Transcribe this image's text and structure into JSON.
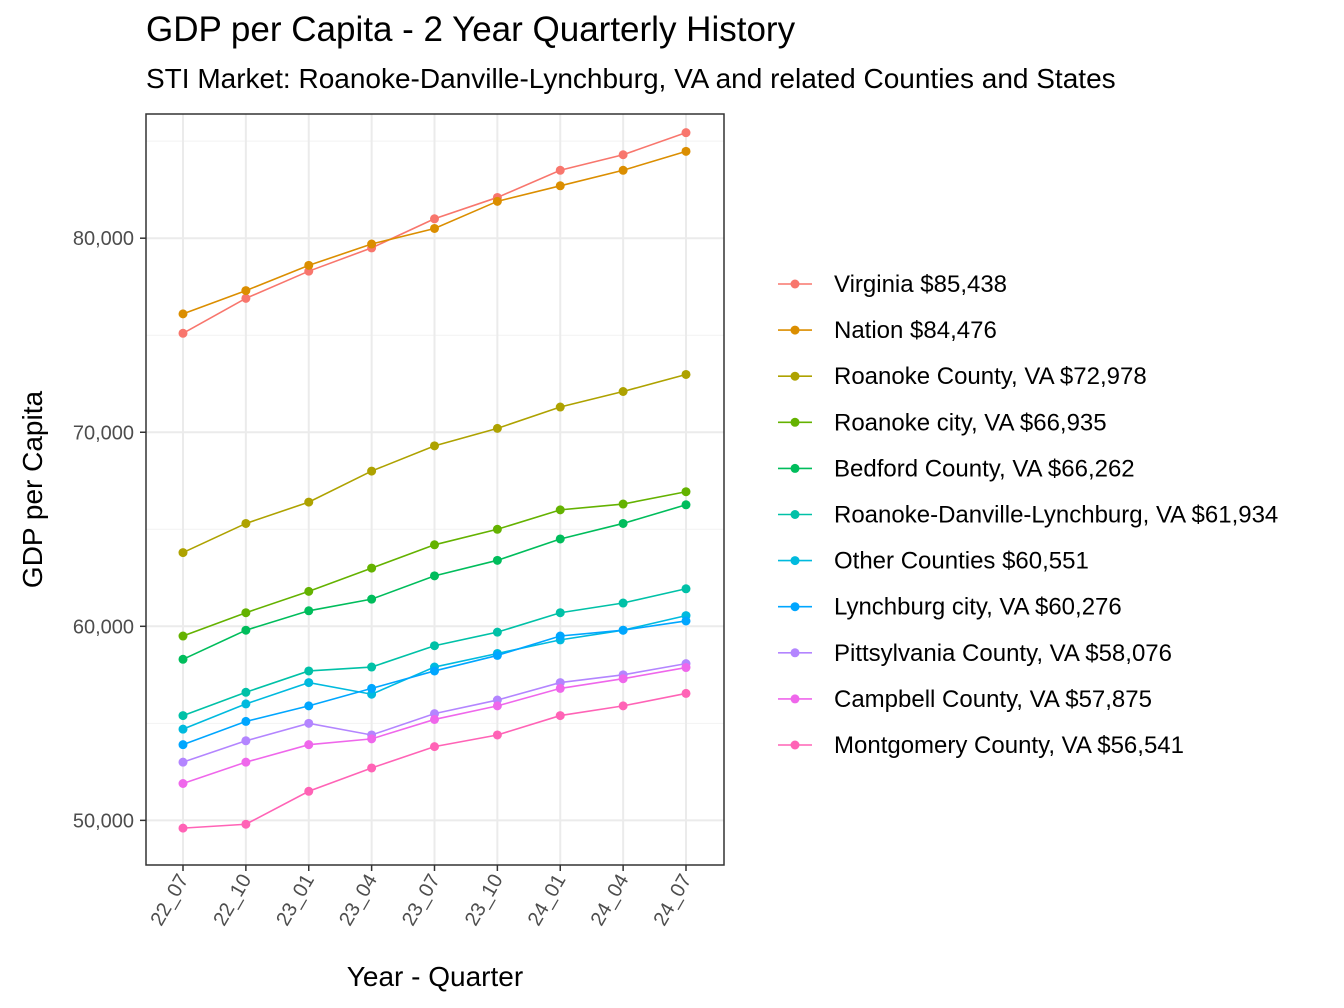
{
  "chart_data": {
    "type": "line",
    "title": "GDP per Capita - 2 Year Quarterly History",
    "subtitle": "STI Market: Roanoke-Danville-Lynchburg, VA and related Counties and States",
    "xlabel": "Year - Quarter",
    "ylabel": "GDP per Capita",
    "categories": [
      "22_07",
      "22_10",
      "23_01",
      "23_04",
      "23_07",
      "23_10",
      "24_01",
      "24_04",
      "24_07"
    ],
    "ylim": [
      47700,
      86400
    ],
    "yticks": [
      50000,
      60000,
      70000,
      80000
    ],
    "ytick_labels": [
      "50,000",
      "60,000",
      "70,000",
      "80,000"
    ],
    "grid": true,
    "legend_position": "right",
    "series": [
      {
        "name": "Virginia $85,438",
        "color": "#F8766D",
        "values": [
          75100,
          76900,
          78300,
          79500,
          81000,
          82100,
          83500,
          84300,
          85438
        ]
      },
      {
        "name": "Nation $84,476",
        "color": "#DB8E00",
        "values": [
          76100,
          77300,
          78600,
          79700,
          80500,
          81900,
          82700,
          83500,
          84476
        ]
      },
      {
        "name": "Roanoke County, VA $72,978",
        "color": "#AEA200",
        "values": [
          63800,
          65300,
          66400,
          68000,
          69300,
          70200,
          71300,
          72100,
          72978
        ]
      },
      {
        "name": "Roanoke city, VA $66,935",
        "color": "#64B200",
        "values": [
          59500,
          60700,
          61800,
          63000,
          64200,
          65000,
          66000,
          66300,
          66935
        ]
      },
      {
        "name": "Bedford County, VA $66,262",
        "color": "#00BD5C",
        "values": [
          58300,
          59800,
          60800,
          61400,
          62600,
          63400,
          64500,
          65300,
          66262
        ]
      },
      {
        "name": "Roanoke-Danville-Lynchburg, VA $61,934",
        "color": "#00C1A7",
        "values": [
          55400,
          56600,
          57700,
          57900,
          59000,
          59700,
          60700,
          61200,
          61934
        ]
      },
      {
        "name": "Other Counties $60,551",
        "color": "#00BADE",
        "values": [
          54700,
          56000,
          57100,
          56500,
          57900,
          58600,
          59300,
          59800,
          60551
        ]
      },
      {
        "name": "Lynchburg city, VA $60,276",
        "color": "#00A6FF",
        "values": [
          53900,
          55100,
          55900,
          56800,
          57700,
          58500,
          59500,
          59800,
          60276
        ]
      },
      {
        "name": "Pittsylvania County, VA $58,076",
        "color": "#B385FF",
        "values": [
          53000,
          54100,
          55000,
          54400,
          55500,
          56200,
          57100,
          57500,
          58076
        ]
      },
      {
        "name": "Campbell County, VA $57,875",
        "color": "#EF67EB",
        "values": [
          51900,
          53000,
          53900,
          54200,
          55200,
          55900,
          56800,
          57300,
          57875
        ]
      },
      {
        "name": "Montgomery County, VA $56,541",
        "color": "#FF63B6",
        "values": [
          49600,
          49800,
          51500,
          52700,
          53800,
          54400,
          55400,
          55900,
          56541
        ]
      }
    ]
  }
}
